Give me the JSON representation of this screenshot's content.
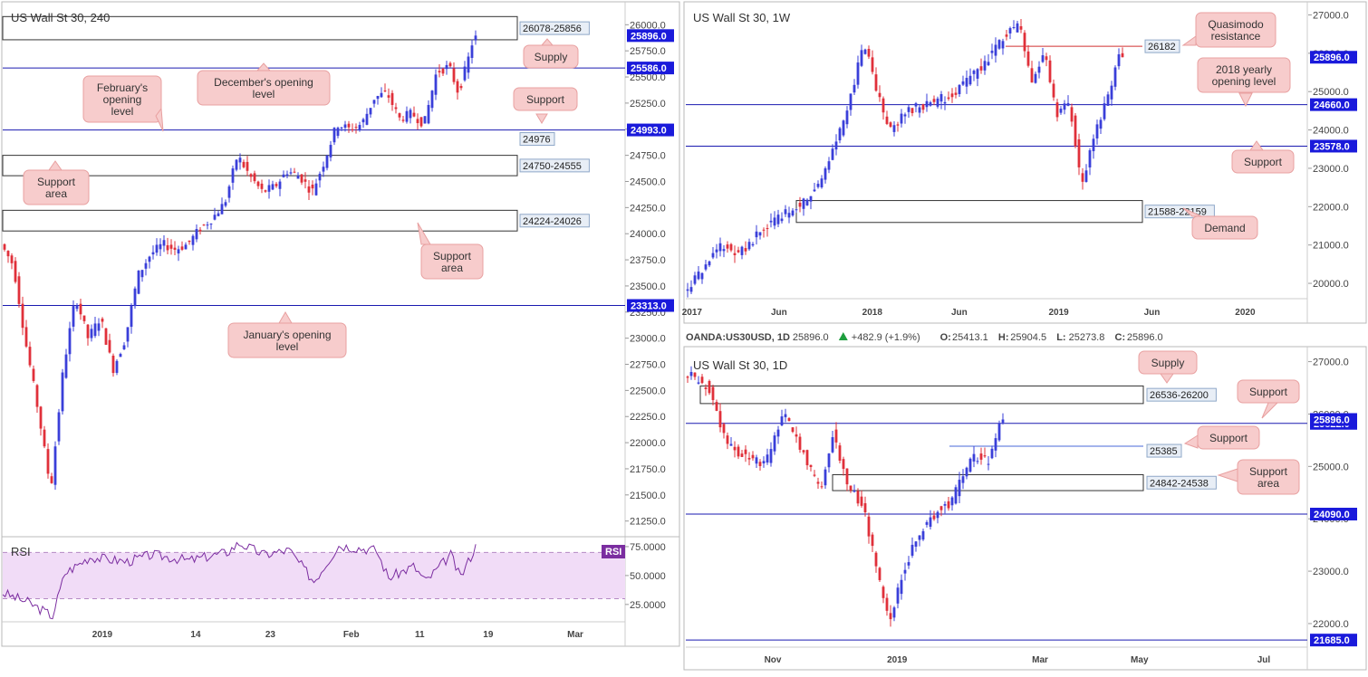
{
  "colors": {
    "up": "#3a3fd9",
    "down": "#e0303a",
    "level": "#1a1ab0",
    "zone": "#333333",
    "note_fill": "#f7cccc",
    "note_stroke": "#e8a0a0",
    "badge": "#1a1adb",
    "label_fill": "#e8eef6",
    "rsi": "#7b2da0",
    "rsi_band": "#f1dcf7"
  },
  "chart_data": [
    {
      "id": "h4",
      "type": "candlestick",
      "title": "US Wall St 30, 240",
      "ylim": [
        21100,
        26150
      ],
      "y_ticks": [
        26000,
        25750,
        25500,
        25250,
        25000,
        24750,
        24500,
        24250,
        24000,
        23750,
        23500,
        23250,
        23000,
        22750,
        22500,
        22250,
        22000,
        21750,
        21500,
        21250
      ],
      "y_tick_labels": [
        "26000.0",
        "25750.0",
        "25500.0",
        "25250.0",
        "25000.0",
        "24750.0",
        "24500.0",
        "24250.0",
        "24000.0",
        "23750.0",
        "23500.0",
        "23250.0",
        "23000.0",
        "22750.0",
        "22500.0",
        "22250.0",
        "22000.0",
        "21750.0",
        "21500.0",
        "21250.0"
      ],
      "x_labels": [
        "2019",
        "14",
        "23",
        "Feb",
        "11",
        "19",
        "Mar"
      ],
      "x_label_pos": [
        0.16,
        0.31,
        0.43,
        0.56,
        0.67,
        0.78,
        0.92
      ],
      "path": [
        [
          0,
          23900
        ],
        [
          0.02,
          23700
        ],
        [
          0.04,
          22950
        ],
        [
          0.06,
          22300
        ],
        [
          0.08,
          21550
        ],
        [
          0.1,
          22700
        ],
        [
          0.12,
          23400
        ],
        [
          0.14,
          23000
        ],
        [
          0.16,
          23200
        ],
        [
          0.18,
          22700
        ],
        [
          0.2,
          23000
        ],
        [
          0.22,
          23600
        ],
        [
          0.24,
          23800
        ],
        [
          0.26,
          23900
        ],
        [
          0.28,
          23850
        ],
        [
          0.3,
          23900
        ],
        [
          0.32,
          24050
        ],
        [
          0.34,
          24150
        ],
        [
          0.36,
          24300
        ],
        [
          0.38,
          24750
        ],
        [
          0.4,
          24550
        ],
        [
          0.42,
          24400
        ],
        [
          0.44,
          24450
        ],
        [
          0.46,
          24600
        ],
        [
          0.48,
          24550
        ],
        [
          0.5,
          24400
        ],
        [
          0.52,
          24700
        ],
        [
          0.54,
          25050
        ],
        [
          0.56,
          25000
        ],
        [
          0.58,
          25050
        ],
        [
          0.6,
          25300
        ],
        [
          0.62,
          25350
        ],
        [
          0.64,
          25100
        ],
        [
          0.66,
          25150
        ],
        [
          0.68,
          25050
        ],
        [
          0.7,
          25550
        ],
        [
          0.72,
          25600
        ],
        [
          0.735,
          25350
        ],
        [
          0.75,
          25650
        ],
        [
          0.76,
          25896
        ]
      ],
      "levels": [
        {
          "value": 25586,
          "label": "25586.0",
          "badge": true
        },
        {
          "value": 24993,
          "label": "24993.0",
          "badge": true
        },
        {
          "value": 24976,
          "label": "24976",
          "badge": false
        },
        {
          "value": 23313,
          "label": "23313.0",
          "badge": true
        }
      ],
      "zones": [
        {
          "from": 26078,
          "to": 25856,
          "label": "26078-25856"
        },
        {
          "from": 24750,
          "to": 24555,
          "label": "24750-24555"
        },
        {
          "from": 24224,
          "to": 24026,
          "label": "24224-24026"
        }
      ],
      "current": {
        "value": 25896,
        "label": "25896.0"
      },
      "notes": [
        {
          "lines": [
            "Supply"
          ]
        },
        {
          "lines": [
            "December's opening",
            "level"
          ]
        },
        {
          "lines": [
            "February's",
            "opening",
            "level"
          ]
        },
        {
          "lines": [
            "Support"
          ]
        },
        {
          "lines": [
            "Support",
            "area"
          ]
        },
        {
          "lines": [
            "Support",
            "area"
          ]
        },
        {
          "lines": [
            "January's opening",
            "level"
          ]
        }
      ]
    },
    {
      "id": "rsi",
      "type": "line",
      "title": "RSI",
      "legend": "RSI",
      "ylim": [
        10,
        82
      ],
      "y_ticks": [
        75,
        50,
        25
      ],
      "y_tick_labels": [
        "75.0000",
        "50.0000",
        "25.0000"
      ],
      "band": [
        30,
        70
      ],
      "path": [
        [
          0,
          35
        ],
        [
          0.04,
          27
        ],
        [
          0.08,
          15
        ],
        [
          0.1,
          52
        ],
        [
          0.14,
          66
        ],
        [
          0.2,
          62
        ],
        [
          0.24,
          68
        ],
        [
          0.3,
          63
        ],
        [
          0.36,
          70
        ],
        [
          0.38,
          78
        ],
        [
          0.42,
          68
        ],
        [
          0.46,
          72
        ],
        [
          0.5,
          45
        ],
        [
          0.54,
          76
        ],
        [
          0.6,
          72
        ],
        [
          0.62,
          48
        ],
        [
          0.66,
          58
        ],
        [
          0.68,
          45
        ],
        [
          0.72,
          68
        ],
        [
          0.735,
          48
        ],
        [
          0.76,
          75
        ]
      ]
    },
    {
      "id": "w1",
      "type": "candlestick",
      "title": "US Wall St 30, 1W",
      "ylim": [
        19600,
        27200
      ],
      "y_ticks": [
        27000,
        26000,
        25000,
        24000,
        23000,
        22000,
        21000,
        20000
      ],
      "y_tick_labels": [
        "27000.0",
        "26000.0",
        "25000.0",
        "24000.0",
        "23000.0",
        "22000.0",
        "21000.0",
        "20000.0"
      ],
      "x_labels": [
        "2017",
        "Jun",
        "2018",
        "Jun",
        "2019",
        "Jun",
        "2020"
      ],
      "x_label_pos": [
        0.01,
        0.15,
        0.3,
        0.44,
        0.6,
        0.75,
        0.9
      ],
      "path": [
        [
          0,
          19800
        ],
        [
          0.03,
          20300
        ],
        [
          0.06,
          21000
        ],
        [
          0.09,
          20800
        ],
        [
          0.12,
          21300
        ],
        [
          0.16,
          21800
        ],
        [
          0.2,
          22200
        ],
        [
          0.23,
          23000
        ],
        [
          0.26,
          24400
        ],
        [
          0.29,
          26300
        ],
        [
          0.31,
          25000
        ],
        [
          0.33,
          24000
        ],
        [
          0.36,
          24500
        ],
        [
          0.4,
          24700
        ],
        [
          0.44,
          25000
        ],
        [
          0.48,
          25700
        ],
        [
          0.52,
          26500
        ],
        [
          0.54,
          26800
        ],
        [
          0.56,
          25200
        ],
        [
          0.58,
          26000
        ],
        [
          0.6,
          24400
        ],
        [
          0.62,
          24700
        ],
        [
          0.64,
          22500
        ],
        [
          0.66,
          23800
        ],
        [
          0.68,
          24800
        ],
        [
          0.7,
          25896
        ]
      ],
      "levels": [
        {
          "value": 24660,
          "label": "24660.0",
          "badge": true
        },
        {
          "value": 23578,
          "label": "23578.0",
          "badge": true
        },
        {
          "value": 26182,
          "label": "26182",
          "badge": false
        }
      ],
      "zones": [
        {
          "from": 21588,
          "to": 22159,
          "label": "21588-22159"
        }
      ],
      "current": {
        "value": 25896,
        "label": "25896.0"
      },
      "notes": [
        {
          "lines": [
            "Quasimodo",
            "resistance"
          ]
        },
        {
          "lines": [
            "2018 yearly",
            "opening level"
          ]
        },
        {
          "lines": [
            "Support"
          ]
        },
        {
          "lines": [
            "Demand"
          ]
        }
      ]
    },
    {
      "id": "d1",
      "type": "candlestick",
      "title": "US Wall St 30, 1D",
      "ylim": [
        21550,
        27200
      ],
      "y_ticks": [
        27000,
        26000,
        25000,
        24000,
        23000,
        22000
      ],
      "y_tick_labels": [
        "27000.0",
        "26000.0",
        "25000.0",
        "24000.0",
        "23000.0",
        "22000.0"
      ],
      "x_labels": [
        "Nov",
        "2019",
        "Mar",
        "May",
        "Jul"
      ],
      "x_label_pos": [
        0.14,
        0.34,
        0.57,
        0.73,
        0.93
      ],
      "path": [
        [
          0,
          26800
        ],
        [
          0.04,
          26500
        ],
        [
          0.07,
          25400
        ],
        [
          0.1,
          25200
        ],
        [
          0.13,
          25000
        ],
        [
          0.16,
          26000
        ],
        [
          0.19,
          25300
        ],
        [
          0.22,
          24500
        ],
        [
          0.24,
          25700
        ],
        [
          0.26,
          24700
        ],
        [
          0.29,
          24200
        ],
        [
          0.31,
          23000
        ],
        [
          0.33,
          22000
        ],
        [
          0.35,
          22900
        ],
        [
          0.37,
          23500
        ],
        [
          0.39,
          23900
        ],
        [
          0.41,
          24200
        ],
        [
          0.43,
          24300
        ],
        [
          0.45,
          24900
        ],
        [
          0.47,
          25200
        ],
        [
          0.49,
          25100
        ],
        [
          0.5,
          25500
        ],
        [
          0.51,
          25896
        ]
      ],
      "levels": [
        {
          "value": 25822,
          "label": "25822.0",
          "badge": true
        },
        {
          "value": 24090,
          "label": "24090.0",
          "badge": true
        },
        {
          "value": 21685,
          "label": "21685.0",
          "badge": true
        },
        {
          "value": 25385,
          "label": "25385",
          "badge": false
        }
      ],
      "zones": [
        {
          "from": 26536,
          "to": 26200,
          "label": "26536-26200"
        },
        {
          "from": 24842,
          "to": 24538,
          "label": "24842-24538"
        }
      ],
      "current": {
        "value": 25896,
        "label": "25896.0"
      },
      "notes": [
        {
          "lines": [
            "Supply"
          ]
        },
        {
          "lines": [
            "Support"
          ]
        },
        {
          "lines": [
            "Support"
          ]
        },
        {
          "lines": [
            "Support",
            "area"
          ]
        }
      ]
    }
  ],
  "legend": {
    "symbol": "OANDA:US30USD, 1D",
    "last": "25896.0",
    "change": "+482.9 (+1.9%)",
    "o_label": "O:",
    "o": "25413.1",
    "h_label": "H:",
    "h": "25904.5",
    "l_label": "L:",
    "l": "25273.8",
    "c_label": "C:",
    "c": "25896.0"
  }
}
